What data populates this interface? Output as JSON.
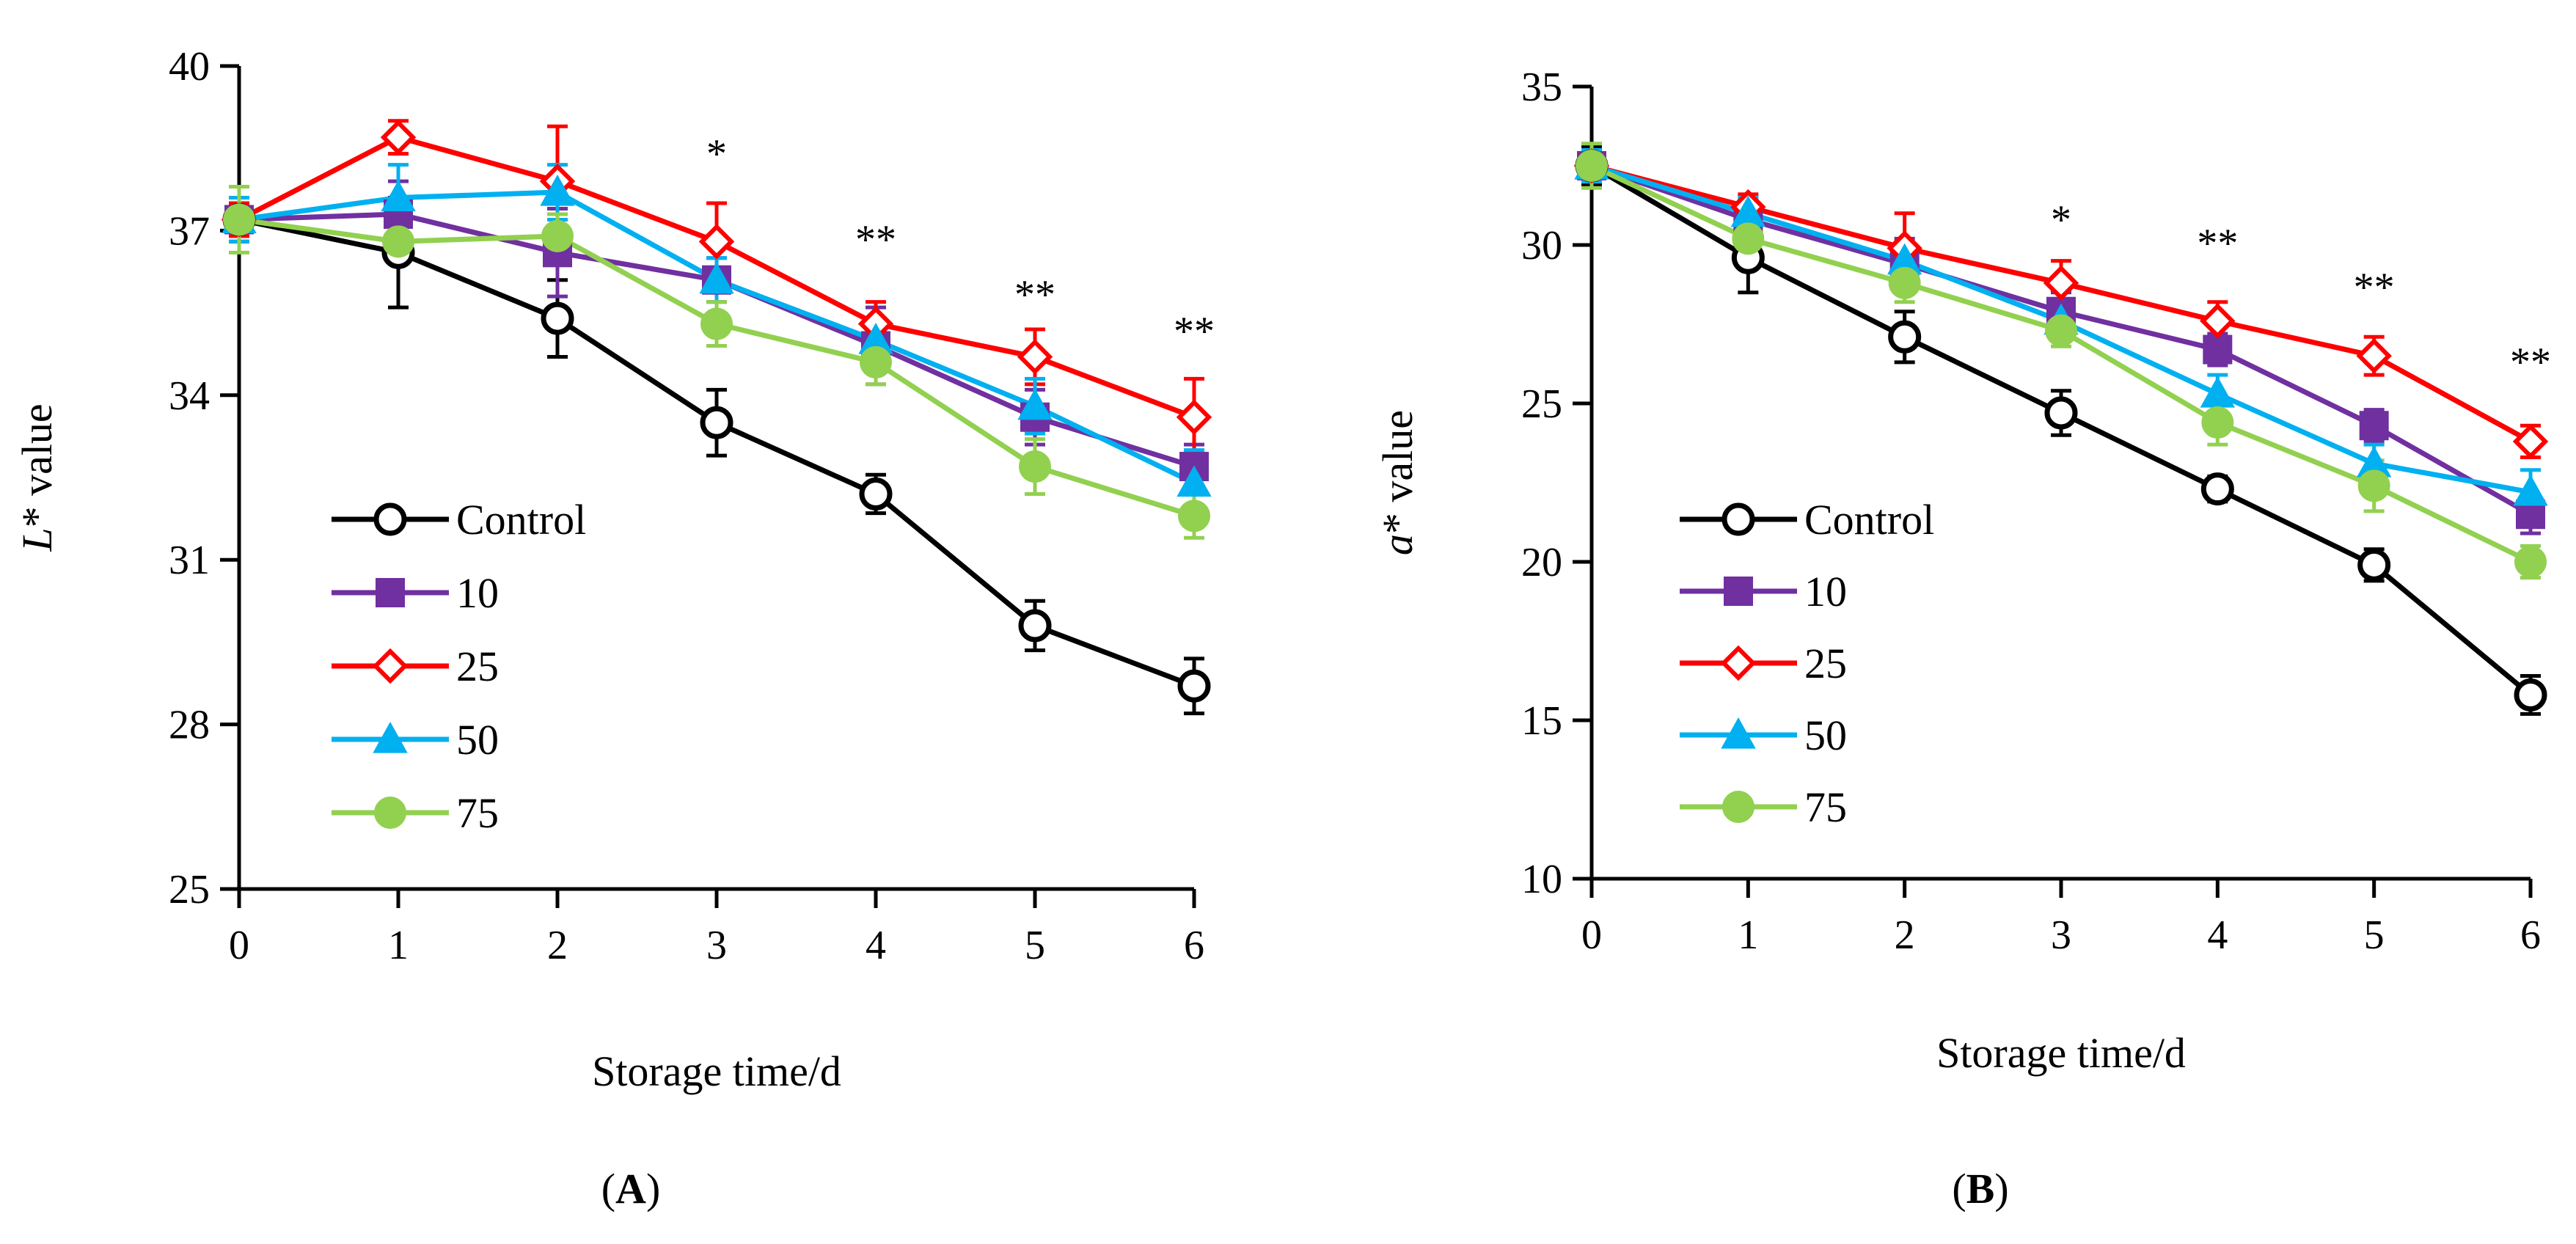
{
  "chart_data": [
    {
      "type": "line",
      "panel_label": "A",
      "xlabel": "Storage time/d",
      "ylabel_italic": "L",
      "ylabel_rest": "* value",
      "x": [
        0,
        1,
        2,
        3,
        4,
        5,
        6
      ],
      "xlim": [
        0,
        6
      ],
      "ylim": [
        25,
        40
      ],
      "yticks": [
        25,
        28,
        31,
        34,
        37,
        40
      ],
      "legend_position": "lower-left",
      "significance": [
        {
          "x": 3,
          "label": "*"
        },
        {
          "x": 4,
          "label": "**"
        },
        {
          "x": 5,
          "label": "**"
        },
        {
          "x": 6,
          "label": "**"
        }
      ],
      "series": [
        {
          "name": "Control",
          "color": "#000000",
          "marker": "circle-open",
          "values": [
            37.2,
            36.6,
            35.4,
            33.5,
            32.2,
            29.8,
            28.7
          ],
          "errors": [
            0.4,
            1.0,
            0.7,
            0.6,
            0.35,
            0.45,
            0.5
          ]
        },
        {
          "name": "10",
          "color": "#7030A0",
          "marker": "square",
          "values": [
            37.2,
            37.3,
            36.6,
            36.1,
            34.9,
            33.6,
            32.7
          ],
          "errors": [
            0.4,
            0.6,
            0.8,
            0.4,
            0.7,
            0.5,
            0.4
          ]
        },
        {
          "name": "25",
          "color": "#FF0000",
          "marker": "diamond-open",
          "values": [
            37.2,
            38.7,
            37.9,
            36.8,
            35.3,
            34.7,
            33.6
          ],
          "errors": [
            0.3,
            0.3,
            1.0,
            0.7,
            0.4,
            0.5,
            0.7
          ]
        },
        {
          "name": "50",
          "color": "#00B0F0",
          "marker": "triangle",
          "values": [
            37.2,
            37.6,
            37.7,
            36.1,
            35.0,
            33.8,
            32.4
          ],
          "errors": [
            0.4,
            0.6,
            0.5,
            0.4,
            0.4,
            0.5,
            0.6
          ]
        },
        {
          "name": "75",
          "color": "#92D050",
          "marker": "circle",
          "values": [
            37.2,
            36.8,
            36.9,
            35.3,
            34.6,
            32.7,
            31.8
          ],
          "errors": [
            0.6,
            0.4,
            0.4,
            0.4,
            0.4,
            0.5,
            0.4
          ]
        }
      ]
    },
    {
      "type": "line",
      "panel_label": "B",
      "xlabel": "Storage time/d",
      "ylabel_italic": "a",
      "ylabel_rest": "* value",
      "x": [
        0,
        1,
        2,
        3,
        4,
        5,
        6
      ],
      "xlim": [
        0,
        6
      ],
      "ylim": [
        10,
        35
      ],
      "yticks": [
        10,
        15,
        20,
        25,
        30,
        35
      ],
      "legend_position": "lower-left",
      "significance": [
        {
          "x": 3,
          "label": "*"
        },
        {
          "x": 4,
          "label": "**"
        },
        {
          "x": 5,
          "label": "**"
        },
        {
          "x": 6,
          "label": "**"
        }
      ],
      "series": [
        {
          "name": "Control",
          "color": "#000000",
          "marker": "circle-open",
          "values": [
            32.5,
            29.6,
            27.1,
            24.7,
            22.3,
            19.9,
            15.8
          ],
          "errors": [
            0.6,
            1.1,
            0.8,
            0.7,
            0.4,
            0.5,
            0.6
          ]
        },
        {
          "name": "10",
          "color": "#7030A0",
          "marker": "square",
          "values": [
            32.5,
            30.8,
            29.4,
            27.9,
            26.7,
            24.3,
            21.5
          ],
          "errors": [
            0.5,
            0.6,
            0.8,
            0.6,
            0.5,
            0.5,
            0.6
          ]
        },
        {
          "name": "25",
          "color": "#FF0000",
          "marker": "diamond-open",
          "values": [
            32.5,
            31.2,
            29.9,
            28.8,
            27.6,
            26.5,
            23.8
          ],
          "errors": [
            0.4,
            0.4,
            1.1,
            0.7,
            0.6,
            0.6,
            0.5
          ]
        },
        {
          "name": "50",
          "color": "#00B0F0",
          "marker": "triangle",
          "values": [
            32.5,
            31.0,
            29.5,
            27.6,
            25.3,
            23.1,
            22.2
          ],
          "errors": [
            0.5,
            0.5,
            0.5,
            0.5,
            0.6,
            0.6,
            0.7
          ]
        },
        {
          "name": "75",
          "color": "#92D050",
          "marker": "circle",
          "values": [
            32.5,
            30.2,
            28.8,
            27.3,
            24.4,
            22.4,
            20.0
          ],
          "errors": [
            0.7,
            0.6,
            0.6,
            0.5,
            0.7,
            0.8,
            0.5
          ]
        }
      ]
    }
  ]
}
